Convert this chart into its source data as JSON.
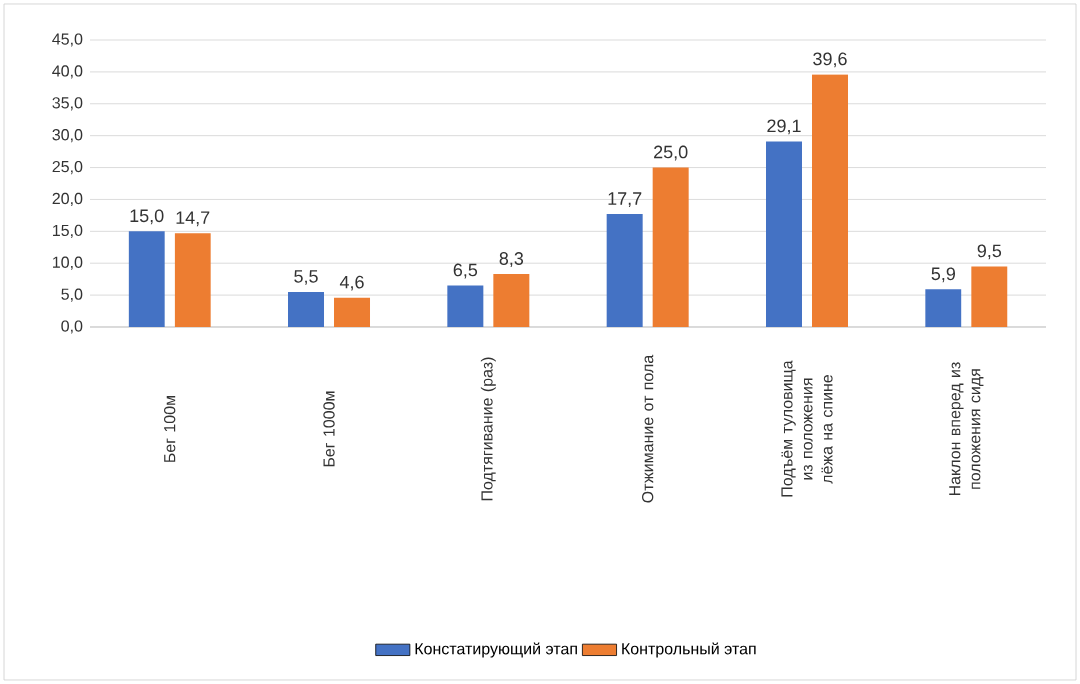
{
  "chart_data": {
    "type": "bar",
    "categories": [
      "Бег 100м",
      "Бег 1000м",
      "Подтягивание (раз)",
      "Отжимание от пола",
      "Подъём туловища из положения лёжа на спине",
      "Наклон вперед из положения сидя"
    ],
    "series": [
      {
        "name": "Констатирующий этап",
        "color": "#4472c4",
        "values": [
          15.0,
          5.5,
          6.5,
          17.7,
          29.1,
          5.9
        ],
        "value_labels": [
          "15,0",
          "5,5",
          "6,5",
          "17,7",
          "29,1",
          "5,9"
        ]
      },
      {
        "name": "Контрольный этап",
        "color": "#ed7d31",
        "values": [
          14.7,
          4.6,
          8.3,
          25.0,
          39.6,
          9.5
        ],
        "value_labels": [
          "14,7",
          "4,6",
          "8,3",
          "25,0",
          "39,6",
          "9,5"
        ]
      }
    ],
    "ylim": [
      0,
      45
    ],
    "yticks": [
      {
        "value": 0,
        "label": "0,0"
      },
      {
        "value": 5,
        "label": "5,0"
      },
      {
        "value": 10,
        "label": "10,0"
      },
      {
        "value": 15,
        "label": "15,0"
      },
      {
        "value": 20,
        "label": "20,0"
      },
      {
        "value": 25,
        "label": "25,0"
      },
      {
        "value": 30,
        "label": "30,0"
      },
      {
        "value": 35,
        "label": "35,0"
      },
      {
        "value": 40,
        "label": "40,0"
      },
      {
        "value": 45,
        "label": "45,0"
      }
    ],
    "grid": "y",
    "legend": "bottom"
  }
}
